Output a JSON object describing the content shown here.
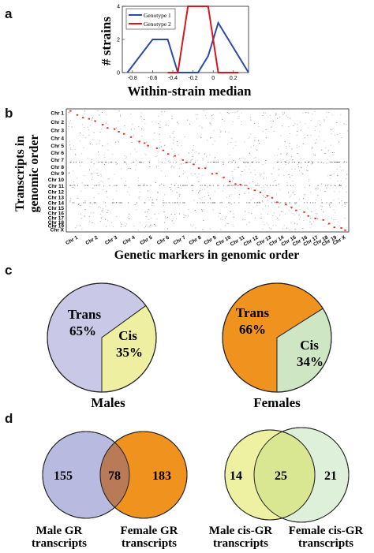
{
  "panel_labels": {
    "a": "a",
    "b": "b",
    "c": "c",
    "d": "d"
  },
  "panel_a": {
    "chart_data": {
      "type": "line",
      "xlabel": "Within-strain median",
      "ylabel": "# strains",
      "xlim": [
        -0.9,
        0.35
      ],
      "ylim": [
        0,
        4
      ],
      "x_ticks": [
        "-0.8",
        "-0.6",
        "-0.4",
        "-0.2",
        "0",
        "0.2"
      ],
      "y_ticks": [
        "0",
        "2",
        "4"
      ],
      "legend_position": "top-left",
      "series": [
        {
          "name": "Genotype 1",
          "color": "#2a4aa8",
          "x": [
            -0.85,
            -0.6,
            -0.45,
            -0.35,
            -0.25,
            -0.15,
            -0.05,
            0.05,
            0.15,
            0.25,
            0.35
          ],
          "y": [
            0,
            2,
            2,
            0,
            0,
            0,
            1,
            3,
            2,
            1,
            0
          ]
        },
        {
          "name": "Genotype 2",
          "color": "#d8161c",
          "x": [
            -0.45,
            -0.35,
            -0.25,
            -0.15,
            -0.05,
            0.05,
            0.15,
            0.25
          ],
          "y": [
            0,
            0,
            4,
            4,
            4,
            0,
            0,
            0
          ]
        }
      ]
    }
  },
  "panel_b": {
    "ylabel_line1": "Transcripts in",
    "ylabel_line2": "genomic order",
    "xlabel": "Genetic markers in genomic order",
    "chromosomes_y": [
      "Chr 1",
      "Chr 2",
      "Chr 3",
      "Chr 4",
      "Chr 5",
      "Chr 6",
      "Chr 7",
      "Chr 8",
      "Chr 9",
      "Chr 10",
      "Chr 11",
      "Chr 12",
      "Chr 13",
      "Chr 14",
      "Chr 15",
      "Chr 16",
      "Chr 17",
      "Chr 18",
      "Chr 19",
      "Chr X"
    ],
    "chromosomes_x": [
      "Chr 1",
      "Chr 2",
      "Chr 3",
      "Chr 4",
      "Chr 5",
      "Chr 6",
      "Chr 7",
      "Chr 8",
      "Chr 9",
      "Chr 10",
      "Chr 11",
      "Chr 12",
      "Chr 13",
      "Chr 14",
      "Chr 15",
      "Chr 16",
      "Chr 17",
      "Chr 18",
      "Chr 19",
      "Chr X"
    ],
    "hit_color": "#e8231a"
  },
  "panel_c": {
    "males": {
      "title": "Males",
      "slices": [
        {
          "name": "Trans",
          "value": 65,
          "label": "65%",
          "color": "#c9c8e6"
        },
        {
          "name": "Cis",
          "value": 35,
          "label": "35%",
          "color": "#eeefa0"
        }
      ]
    },
    "females": {
      "title": "Females",
      "slices": [
        {
          "name": "Trans",
          "value": 66,
          "label": "66%",
          "color": "#f0921e"
        },
        {
          "name": "Cis",
          "value": 34,
          "label": "34%",
          "color": "#cfe6c4"
        }
      ]
    }
  },
  "panel_d": {
    "left": {
      "a_only": "155",
      "overlap": "78",
      "b_only": "183",
      "a_label_1": "Male GR",
      "a_label_2": "transcripts",
      "b_label_1": "Female GR",
      "b_label_2": "transcripts",
      "a_color": "#b8bbdf",
      "b_color": "#f0921e",
      "overlap_color": "#b97a58"
    },
    "right": {
      "a_only": "14",
      "overlap": "25",
      "b_only": "21",
      "a_label_1": "Male cis-GR",
      "a_label_2": "transcripts",
      "b_label_1": "Female cis-GR",
      "b_label_2": "transcripts",
      "a_color": "#eef0a2",
      "b_color": "#dff0da",
      "overlap_color": "#d9e792"
    }
  }
}
